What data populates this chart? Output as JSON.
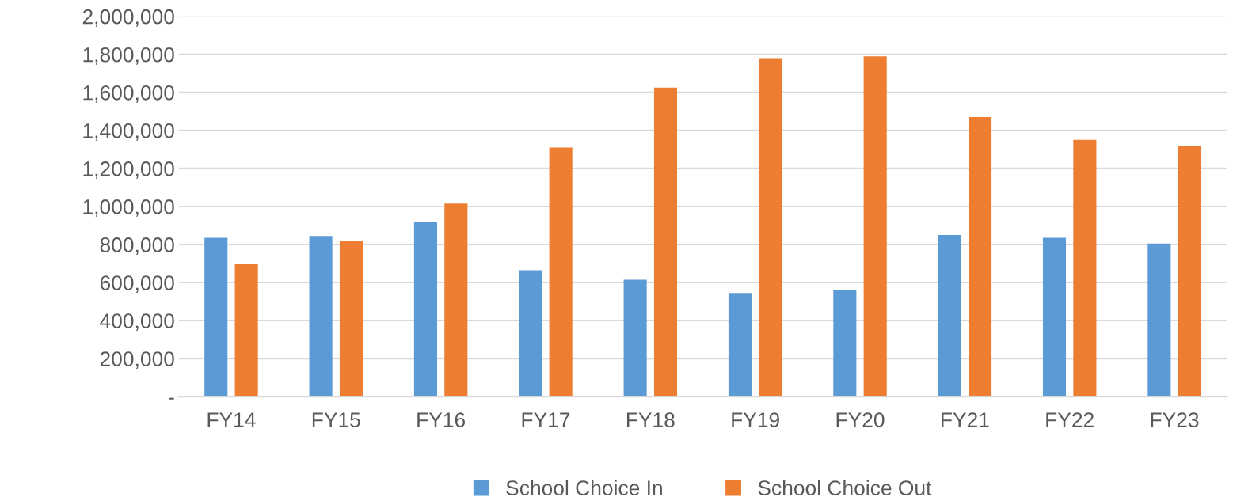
{
  "chart_data": {
    "type": "bar",
    "categories": [
      "FY14",
      "FY15",
      "FY16",
      "FY17",
      "FY18",
      "FY19",
      "FY20",
      "FY21",
      "FY22",
      "FY23"
    ],
    "series": [
      {
        "name": "School Choice In",
        "color": "#5b9bd5",
        "values": [
          835000,
          845000,
          920000,
          665000,
          615000,
          545000,
          560000,
          850000,
          835000,
          805000
        ]
      },
      {
        "name": "School Choice Out",
        "color": "#ed7d31",
        "values": [
          700000,
          820000,
          1015000,
          1310000,
          1625000,
          1780000,
          1790000,
          1470000,
          1350000,
          1320000
        ]
      }
    ],
    "ylim": [
      0,
      2000000
    ],
    "yticks": [
      {
        "value": 0,
        "label": "-"
      },
      {
        "value": 200000,
        "label": "200,000"
      },
      {
        "value": 400000,
        "label": "400,000"
      },
      {
        "value": 600000,
        "label": "600,000"
      },
      {
        "value": 800000,
        "label": "800,000"
      },
      {
        "value": 1000000,
        "label": "1,000,000"
      },
      {
        "value": 1200000,
        "label": "1,200,000"
      },
      {
        "value": 1400000,
        "label": "1,400,000"
      },
      {
        "value": 1600000,
        "label": "1,600,000"
      },
      {
        "value": 1800000,
        "label": "1,800,000"
      },
      {
        "value": 2000000,
        "label": "2,000,000"
      }
    ],
    "grid": "y",
    "legend": "bottom"
  }
}
